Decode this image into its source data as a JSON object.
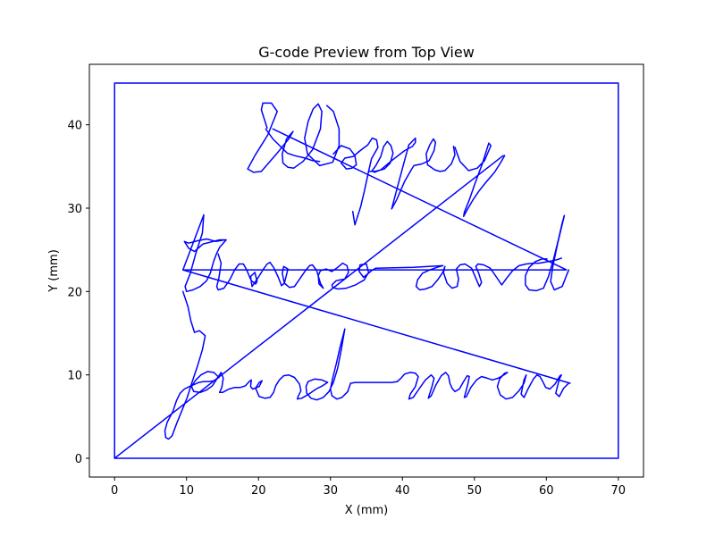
{
  "chart_data": {
    "type": "line",
    "title": "G-code Preview from Top View",
    "xlabel": "X (mm)",
    "ylabel": "Y (mm)",
    "xlim": [
      -3.5,
      73.5
    ],
    "ylim": [
      -2.25,
      47.25
    ],
    "xticks": [
      0,
      10,
      20,
      30,
      40,
      50,
      60,
      70
    ],
    "yticks": [
      0,
      10,
      20,
      30,
      40
    ],
    "grid": false,
    "line_color": "#0000ff",
    "series": [
      {
        "x": [
          0,
          0,
          70,
          70,
          0
        ],
        "y": [
          0,
          45,
          45,
          0,
          0
        ]
      },
      {
        "x": [
          0,
          54
        ],
        "y": [
          0,
          36.3
        ]
      },
      {
        "x": [
          21,
          22,
          24,
          25,
          26.5,
          27.5,
          28.5
        ],
        "y": [
          39.5,
          38.3,
          36.6,
          36.3,
          36.0,
          35.7,
          35.6
        ]
      },
      {
        "x": [
          21.2,
          20.4,
          20.6,
          21.8,
          22.6,
          21.3,
          19.5,
          18.8,
          18.5,
          19.3,
          20.4,
          22.5,
          24.2,
          24.8,
          23.9,
          23.3,
          23.4,
          24.1,
          24.9,
          26.2,
          27.5,
          28.6,
          28.8,
          28.3,
          27.6,
          26.9,
          26.4,
          26.8,
          28.5,
          30.3,
          31.2,
          31.2,
          30.4,
          29.5
        ],
        "y": [
          39.6,
          41.8,
          42.6,
          42.6,
          41.6,
          38.8,
          36.3,
          35.2,
          34.7,
          34.3,
          34.4,
          36.5,
          38.3,
          39.2,
          38.3,
          36.5,
          35.4,
          34.9,
          34.8,
          35.6,
          37.0,
          39.5,
          41.6,
          42.5,
          41.9,
          40.4,
          38.4,
          36.5,
          35.1,
          35.5,
          37.5,
          39.5,
          41.6,
          42.3
        ]
      },
      {
        "x": [
          30.4,
          31.5,
          32.7,
          33.4,
          33.6,
          33.0,
          32.2,
          31.5,
          32.0,
          33.2,
          34.0,
          35.2,
          35.8,
          36.4,
          36.6,
          35.7,
          35.3,
          34.7,
          34.2,
          33.4,
          33.1
        ],
        "y": [
          36.5,
          37.5,
          37.1,
          36.3,
          35.2,
          34.8,
          34.7,
          35.4,
          36.0,
          36.2,
          36.8,
          37.6,
          38.4,
          38.2,
          37.3,
          35.9,
          34.4,
          32.0,
          30.2,
          28.0,
          29.6
        ]
      },
      {
        "x": [
          35.3,
          36.2,
          37.5,
          38.3,
          38.7,
          38.4,
          37.9,
          37.4,
          37.0,
          36.3,
          35.8,
          36.1,
          37.0,
          38.5,
          40.3,
          41.4,
          41.8,
          41.8,
          40.9
        ],
        "y": [
          34.4,
          34.4,
          34.7,
          35.4,
          36.6,
          37.5,
          38.0,
          37.4,
          36.2,
          35.1,
          34.5,
          34.3,
          34.6,
          35.7,
          36.9,
          37.4,
          37.9,
          38.4,
          37.6
        ]
      },
      {
        "x": [
          40.9,
          40.1,
          39.3,
          38.5,
          39.2,
          40.3,
          41.3,
          41.6,
          42.7,
          43.7,
          44.4,
          44.6,
          44.3,
          43.8,
          43.3,
          43.5,
          44.5,
          45.2,
          45.9,
          46.8,
          47.3,
          47.1
        ],
        "y": [
          37.6,
          35.1,
          32.5,
          29.9,
          31.0,
          33.2,
          34.7,
          35.1,
          35.3,
          35.7,
          36.9,
          37.9,
          38.3,
          37.6,
          36.5,
          35.2,
          34.6,
          34.4,
          34.5,
          35.3,
          36.4,
          37.4
        ]
      },
      {
        "x": [
          47.3,
          48.0,
          49.2,
          50.4,
          51.4,
          52.3,
          52.0,
          51.1,
          50.1,
          49.3,
          48.6,
          48.5,
          49.0,
          49.8,
          50.6,
          51.5,
          52.8,
          53.6,
          54.2
        ],
        "y": [
          37.3,
          35.6,
          34.5,
          34.8,
          35.7,
          37.5,
          37.8,
          35.3,
          33.0,
          31.0,
          29.5,
          29.0,
          29.8,
          31.0,
          32.0,
          33.0,
          34.3,
          35.4,
          36.3
        ]
      },
      {
        "x": [
          22,
          62.8,
          9.5,
          63.3
        ],
        "y": [
          39.5,
          22.6,
          22.6,
          9.0
        ]
      },
      {
        "x": [
          9.5,
          12.4,
          12.2,
          11.3,
          10.5,
          9.8,
          10.0,
          10.9,
          11.9,
          12.8,
          13.3,
          13.8,
          14.2,
          14.6,
          15.1,
          15.5
        ],
        "y": [
          22.6,
          29.2,
          27.0,
          24.6,
          22.1,
          20.6,
          20.0,
          20.2,
          20.6,
          21.3,
          22.2,
          23.7,
          24.6,
          25.3,
          25.8,
          26.2
        ]
      },
      {
        "x": [
          15.5,
          14.6,
          13.7,
          12.3,
          11.1,
          10.3,
          9.7,
          10.3,
          11.6,
          12.8,
          14.1,
          15.3
        ],
        "y": [
          26.2,
          26.2,
          26.0,
          25.7,
          24.8,
          25.2,
          26.0,
          25.8,
          26.1,
          26.3,
          26.0,
          26.2
        ]
      },
      {
        "x": [
          14.4,
          14.8,
          14.5,
          14.2,
          14.4,
          15.2,
          16.0,
          16.7,
          17.3,
          17.9,
          18.3,
          19.0,
          19.6,
          19.8,
          19.5,
          18.9,
          19.1,
          19.9,
          20.7,
          21.2,
          21.6,
          22.1,
          22.7,
          23.2,
          23.6,
          24.1,
          23.5,
          23.3,
          23.6,
          24.3,
          25.0,
          25.8,
          26.6,
          27.1,
          27.5,
          28.1,
          28.6,
          29.0,
          28.4,
          28.3,
          28.6,
          29.4,
          30.2,
          31.0,
          31.7,
          32.3,
          32.5,
          32.0,
          30.8,
          30.2,
          30.3,
          31.0,
          32.2,
          33.5,
          34.7,
          35.3,
          35.0,
          34.1,
          34.0,
          34.6,
          35.7
        ],
        "y": [
          24.5,
          23.4,
          21.6,
          20.6,
          20.2,
          20.4,
          21.4,
          22.6,
          23.3,
          23.3,
          22.7,
          21.3,
          20.9,
          21.2,
          22.3,
          21.8,
          20.6,
          21.6,
          22.7,
          23.3,
          23.5,
          22.9,
          21.8,
          20.7,
          21.0,
          22.7,
          23.0,
          22.2,
          21.0,
          20.5,
          20.6,
          21.6,
          22.6,
          23.1,
          23.2,
          22.5,
          21.0,
          20.4,
          20.9,
          21.9,
          22.5,
          22.7,
          22.4,
          22.9,
          23.4,
          23.1,
          22.3,
          21.5,
          21.3,
          20.8,
          20.5,
          20.3,
          20.4,
          20.8,
          21.4,
          22.3,
          23.3,
          23.2,
          22.4,
          21.7,
          22.5
        ]
      },
      {
        "x": [
          35.7,
          36.3,
          41.5,
          45.6
        ],
        "y": [
          22.5,
          22.8,
          22.9,
          23.1
        ]
      },
      {
        "x": [
          45.6,
          44.8,
          43.8,
          42.8,
          42.1,
          41.9,
          42.4,
          43.2,
          44.1,
          44.9,
          45.6,
          45.9,
          45.7,
          46.2,
          46.9,
          47.6,
          47.8,
          47.5,
          48.0,
          48.7,
          49.6,
          50.2,
          50.7,
          51.0,
          50.6,
          50.2,
          50.5,
          51.3,
          52.2,
          53.1,
          53.8,
          54.4
        ],
        "y": [
          23.1,
          22.9,
          22.6,
          22.2,
          21.4,
          20.6,
          20.2,
          20.3,
          20.6,
          21.4,
          22.3,
          23.0,
          22.3,
          21.0,
          20.4,
          20.6,
          21.5,
          22.7,
          23.2,
          23.3,
          22.8,
          21.6,
          20.6,
          21.1,
          22.2,
          23.0,
          23.3,
          23.2,
          22.8,
          21.7,
          20.8,
          21.5
        ]
      },
      {
        "x": [
          54.4,
          55.3,
          56.2,
          57.2,
          58.2,
          59.0,
          60.3,
          61.4,
          62.1
        ],
        "y": [
          21.5,
          22.5,
          23.1,
          23.3,
          23.4,
          23.4,
          23.6,
          23.8,
          24.0
        ]
      },
      {
        "x": [
          60.1,
          59.4,
          58.5,
          57.6,
          57.1,
          57.1,
          57.6,
          58.6,
          59.6,
          60.3,
          61.0,
          61.7,
          62.2,
          62.5
        ],
        "y": [
          23.9,
          23.9,
          23.6,
          22.9,
          21.9,
          20.8,
          20.2,
          20.1,
          20.4,
          21.8,
          23.9,
          26.3,
          28.2,
          29.1
        ]
      },
      {
        "x": [
          62.5,
          61.6,
          60.9,
          60.6,
          61.1,
          62.2,
          63.1
        ],
        "y": [
          29.1,
          25.9,
          23.0,
          21.2,
          20.2,
          20.6,
          22.6
        ]
      },
      {
        "x": [
          9.5,
          10.2,
          10.6,
          11.1,
          11.8,
          12.6,
          12.2,
          11.5,
          10.8,
          10.1,
          9.3,
          8.6,
          8.0,
          7.5,
          7.1,
          7.0,
          7.3,
          8.1,
          8.6,
          9.1,
          9.7,
          10.4,
          11.2,
          11.7,
          12.4,
          13.1,
          13.8,
          14.5
        ],
        "y": [
          20.0,
          18.2,
          16.5,
          15.1,
          15.3,
          14.7,
          13.0,
          11.0,
          9.2,
          7.3,
          5.6,
          4.1,
          2.7,
          2.3,
          2.5,
          3.3,
          4.3,
          5.6,
          6.9,
          7.8,
          8.3,
          8.6,
          8.9,
          9.1,
          9.2,
          9.2,
          9.3,
          9.7
        ]
      },
      {
        "x": [
          14.5,
          13.8,
          12.9,
          12.0,
          11.2,
          10.7,
          11.0,
          11.9,
          12.8,
          13.6,
          14.2,
          14.8,
          15.1,
          14.9,
          14.6,
          15.0,
          15.9,
          16.7,
          17.5,
          18.2,
          18.7,
          19.0,
          18.9,
          19.2,
          20.1,
          20.5,
          20.1,
          19.6,
          20.1,
          20.9,
          21.6,
          22.1,
          22.4,
          22.9,
          23.5,
          24.2,
          25.0,
          25.7,
          25.9,
          25.5,
          25.4,
          26.0,
          27.0,
          28.0,
          28.9,
          29.6
        ],
        "y": [
          9.7,
          10.3,
          10.4,
          10.0,
          9.3,
          8.6,
          8.0,
          7.9,
          8.2,
          8.7,
          9.5,
          10.3,
          9.6,
          8.5,
          7.9,
          7.9,
          8.3,
          8.5,
          8.5,
          8.7,
          9.2,
          9.4,
          8.6,
          8.3,
          8.6,
          9.3,
          9.1,
          8.4,
          7.4,
          7.2,
          7.3,
          7.9,
          8.7,
          9.4,
          9.9,
          10.0,
          9.7,
          8.9,
          8.1,
          7.4,
          7.1,
          7.2,
          7.7,
          8.3,
          8.7,
          9.1
        ]
      },
      {
        "x": [
          29.6,
          28.8,
          27.8,
          26.9,
          26.6,
          26.7,
          27.3,
          28.1,
          29.0,
          29.8,
          30.4,
          31.0,
          31.5,
          32.0,
          31.3,
          30.8,
          30.3,
          30.0,
          30.2,
          30.9,
          31.6,
          32.4
        ],
        "y": [
          9.1,
          9.4,
          9.5,
          9.2,
          8.6,
          7.8,
          7.2,
          7.0,
          7.3,
          8.0,
          9.1,
          10.8,
          13.0,
          15.5,
          13.2,
          11.3,
          9.6,
          8.3,
          7.5,
          7.1,
          7.3,
          8.0
        ]
      },
      {
        "x": [
          32.4,
          32.8,
          33.5,
          36.4,
          38.5,
          39.3
        ],
        "y": [
          8.0,
          9.0,
          9.1,
          9.1,
          9.1,
          9.2
        ]
      },
      {
        "x": [
          39.3,
          39.8,
          40.3,
          41.1,
          41.8,
          42.2,
          41.8,
          41.1,
          40.9,
          41.5,
          42.3,
          43.2,
          44.0,
          44.4,
          44.1,
          43.6,
          44.0,
          44.6,
          45.4,
          46.0,
          46.4,
          46.6,
          46.9,
          47.3,
          47.9,
          48.5,
          49.0,
          49.3,
          49.1,
          48.6,
          48.9,
          49.5,
          50.3,
          51.0,
          51.8,
          52.5,
          53.3,
          54.1,
          54.6,
          54.2,
          53.5,
          53.2,
          53.6,
          54.4,
          55.3,
          56.2,
          56.9,
          57.2,
          56.9,
          56.5,
          56.9,
          57.5,
          58.2,
          58.7,
          59.1,
          59.5,
          59.9,
          60.5,
          61.2,
          61.9,
          62.1,
          61.8,
          61.3,
          61.8,
          62.4,
          63.1
        ],
        "y": [
          9.2,
          9.6,
          10.1,
          10.3,
          10.2,
          9.8,
          8.6,
          7.7,
          7.1,
          7.3,
          8.3,
          9.4,
          10.0,
          9.6,
          8.6,
          7.2,
          7.5,
          8.7,
          9.9,
          10.3,
          9.9,
          9.0,
          8.4,
          8.0,
          8.3,
          9.2,
          9.9,
          9.8,
          8.9,
          7.3,
          7.4,
          8.5,
          9.4,
          9.8,
          9.6,
          9.4,
          9.6,
          10.0,
          10.3,
          10.2,
          9.5,
          8.6,
          7.6,
          7.1,
          7.3,
          8.1,
          9.0,
          10.0,
          9.4,
          7.7,
          7.3,
          8.4,
          9.5,
          10.0,
          9.8,
          9.2,
          8.5,
          8.3,
          8.9,
          9.9,
          10.0,
          9.5,
          7.8,
          7.4,
          8.4,
          9.0
        ]
      }
    ]
  }
}
